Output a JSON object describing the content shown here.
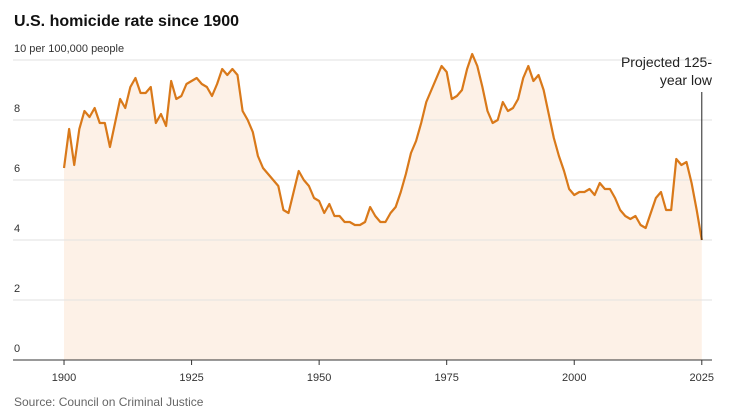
{
  "chart_data": {
    "type": "area-line",
    "title": "U.S. homicide rate since 1900",
    "source": "Source: Council on Criminal Justice",
    "annotation": [
      "Projected 125-",
      "year low"
    ],
    "x": [
      1900,
      1901,
      1902,
      1903,
      1904,
      1905,
      1906,
      1907,
      1908,
      1909,
      1910,
      1911,
      1912,
      1913,
      1914,
      1915,
      1916,
      1917,
      1918,
      1919,
      1920,
      1921,
      1922,
      1923,
      1924,
      1925,
      1926,
      1927,
      1928,
      1929,
      1930,
      1931,
      1932,
      1933,
      1934,
      1935,
      1936,
      1937,
      1938,
      1939,
      1940,
      1941,
      1942,
      1943,
      1944,
      1945,
      1946,
      1947,
      1948,
      1949,
      1950,
      1951,
      1952,
      1953,
      1954,
      1955,
      1956,
      1957,
      1958,
      1959,
      1960,
      1961,
      1962,
      1963,
      1964,
      1965,
      1966,
      1967,
      1968,
      1969,
      1970,
      1971,
      1972,
      1973,
      1974,
      1975,
      1976,
      1977,
      1978,
      1979,
      1980,
      1981,
      1982,
      1983,
      1984,
      1985,
      1986,
      1987,
      1988,
      1989,
      1990,
      1991,
      1992,
      1993,
      1994,
      1995,
      1996,
      1997,
      1998,
      1999,
      2000,
      2001,
      2002,
      2003,
      2004,
      2005,
      2006,
      2007,
      2008,
      2009,
      2010,
      2011,
      2012,
      2013,
      2014,
      2015,
      2016,
      2017,
      2018,
      2019,
      2020,
      2021,
      2022,
      2023,
      2024,
      2025
    ],
    "values": [
      6.4,
      7.7,
      6.5,
      7.7,
      8.3,
      8.1,
      8.4,
      7.9,
      7.9,
      7.1,
      7.9,
      8.7,
      8.4,
      9.1,
      9.4,
      8.9,
      8.9,
      9.1,
      7.9,
      8.2,
      7.8,
      9.3,
      8.7,
      8.8,
      9.2,
      9.3,
      9.4,
      9.2,
      9.1,
      8.8,
      9.2,
      9.7,
      9.5,
      9.7,
      9.5,
      8.3,
      8.0,
      7.6,
      6.8,
      6.4,
      6.2,
      6.0,
      5.8,
      5.0,
      4.9,
      5.6,
      6.3,
      6.0,
      5.8,
      5.4,
      5.3,
      4.9,
      5.2,
      4.8,
      4.8,
      4.6,
      4.6,
      4.5,
      4.5,
      4.6,
      5.1,
      4.8,
      4.6,
      4.6,
      4.9,
      5.1,
      5.6,
      6.2,
      6.9,
      7.3,
      7.9,
      8.6,
      9.0,
      9.4,
      9.8,
      9.6,
      8.7,
      8.8,
      9.0,
      9.7,
      10.2,
      9.8,
      9.1,
      8.3,
      7.9,
      8.0,
      8.6,
      8.3,
      8.4,
      8.7,
      9.4,
      9.8,
      9.3,
      9.5,
      9.0,
      8.2,
      7.4,
      6.8,
      6.3,
      5.7,
      5.5,
      5.6,
      5.6,
      5.7,
      5.5,
      5.9,
      5.7,
      5.7,
      5.4,
      5.0,
      4.8,
      4.7,
      4.8,
      4.5,
      4.4,
      4.9,
      5.4,
      5.6,
      5.0,
      5.0,
      6.7,
      6.5,
      6.6,
      5.9,
      5.0,
      4.0
    ],
    "color": "#d9791a",
    "area_color": "#fdf1e7",
    "xlim": [
      1890,
      2027
    ],
    "ylim": [
      0,
      11
    ],
    "xticks": [
      1900,
      1925,
      1950,
      1975,
      2000,
      2025
    ],
    "yticks": [
      0,
      2,
      4,
      6,
      8,
      {
        "value": 10,
        "label": "10 per 100,000 people"
      }
    ],
    "grid": true
  }
}
